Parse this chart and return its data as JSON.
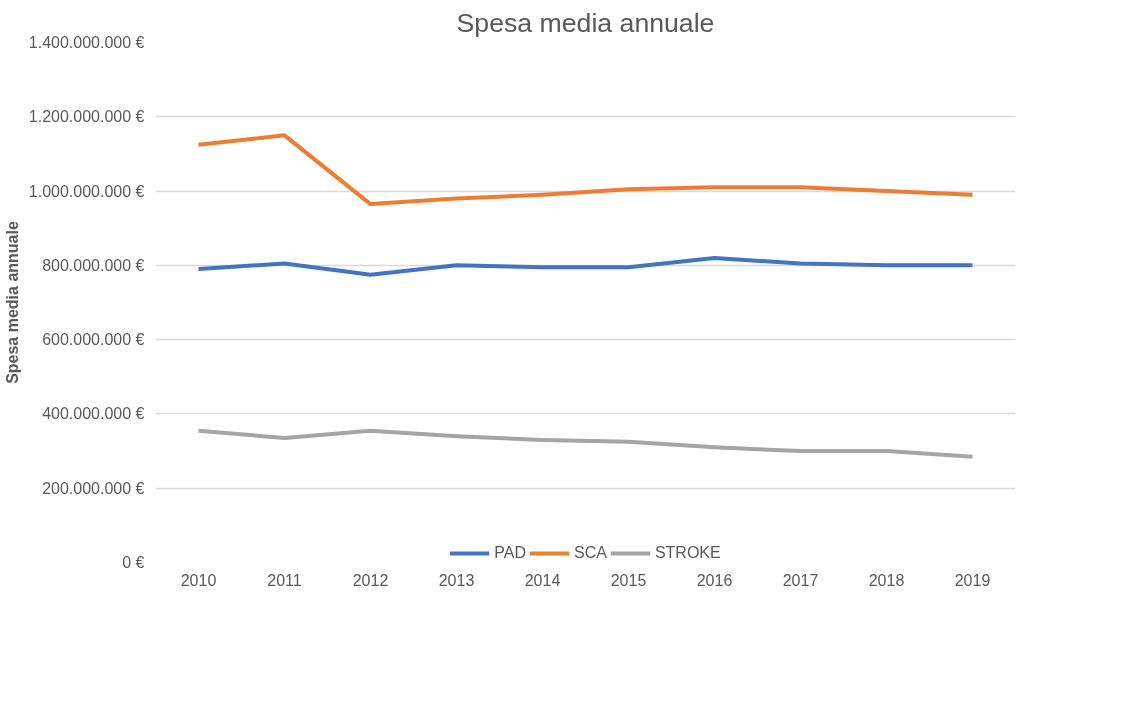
{
  "chart_data": {
    "type": "line",
    "title": "Spesa media annuale",
    "ylabel": "Spesa media annuale",
    "categories": [
      "2010",
      "2011",
      "2012",
      "2013",
      "2014",
      "2015",
      "2016",
      "2017",
      "2018",
      "2019"
    ],
    "series": [
      {
        "name": "PAD",
        "color": "#4472c4",
        "values": [
          790000000,
          805000000,
          775000000,
          800000000,
          795000000,
          795000000,
          820000000,
          805000000,
          800000000,
          800000000
        ]
      },
      {
        "name": "SCA",
        "color": "#ed7d31",
        "values": [
          1125000000,
          1150000000,
          965000000,
          980000000,
          990000000,
          1005000000,
          1010000000,
          1010000000,
          1000000000,
          990000000
        ]
      },
      {
        "name": "STROKE",
        "color": "#a5a5a5",
        "values": [
          355000000,
          335000000,
          355000000,
          340000000,
          330000000,
          325000000,
          310000000,
          300000000,
          300000000,
          285000000
        ]
      }
    ],
    "ylim": [
      0,
      1400000000
    ],
    "yticks": [
      {
        "value": 0,
        "label": "0 €"
      },
      {
        "value": 200000000,
        "label": "200.000.000 €"
      },
      {
        "value": 400000000,
        "label": "400.000.000 €"
      },
      {
        "value": 600000000,
        "label": "600.000.000 €"
      },
      {
        "value": 800000000,
        "label": "800.000.000 €"
      },
      {
        "value": 1000000000,
        "label": "1.000.000.000 €"
      },
      {
        "value": 1200000000,
        "label": "1.200.000.000 €"
      },
      {
        "value": 1400000000,
        "label": "1.400.000.000 €"
      }
    ],
    "grid": "y",
    "legend": "bottom",
    "marker": "none",
    "line_style": "solid"
  }
}
